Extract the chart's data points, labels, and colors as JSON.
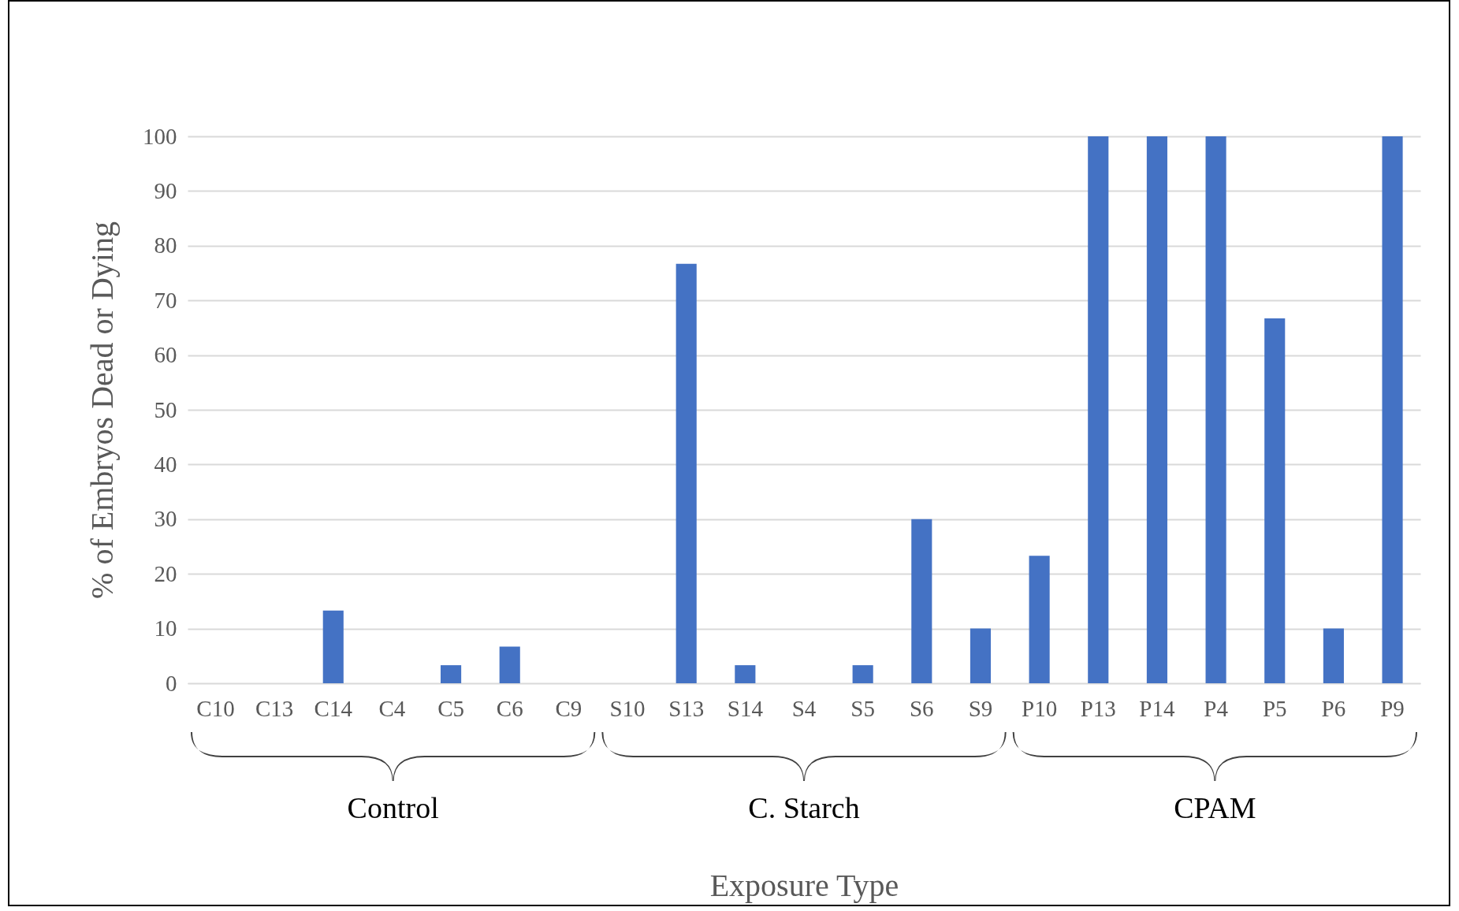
{
  "chart_data": {
    "type": "bar",
    "xlabel": "Exposure Type",
    "ylabel": "% of Embryos Dead or Dying",
    "categories": [
      "C10",
      "C13",
      "C14",
      "C4",
      "C5",
      "C6",
      "C9",
      "S10",
      "S13",
      "S14",
      "S4",
      "S5",
      "S6",
      "S9",
      "P10",
      "P13",
      "P14",
      "P4",
      "P5",
      "P6",
      "P9"
    ],
    "values": [
      0,
      0,
      13.3,
      0,
      3.3,
      6.7,
      0,
      0,
      76.7,
      3.3,
      0,
      3.3,
      30,
      10,
      23.3,
      100,
      100,
      100,
      66.7,
      10,
      100
    ],
    "color": "#4472c4",
    "ylim": [
      0,
      100
    ],
    "yticks": [
      0,
      10,
      20,
      30,
      40,
      50,
      60,
      70,
      80,
      90,
      100
    ],
    "grid": "y",
    "annotations": [
      "Control",
      "C. Starch",
      "CPAM"
    ]
  }
}
